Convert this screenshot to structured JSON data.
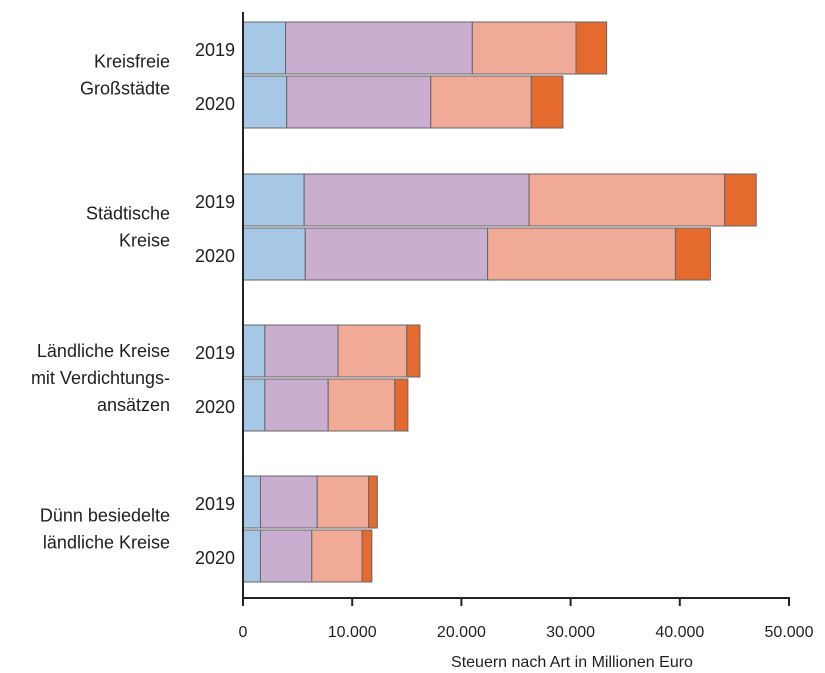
{
  "chart_data": {
    "type": "bar",
    "orientation": "horizontal",
    "stacked": true,
    "xlabel": "Steuern nach Art in Millionen Euro",
    "xlim": [
      0,
      50000
    ],
    "x_ticks": [
      "0",
      "10.000",
      "20.000",
      "30.000",
      "40.000",
      "50.000"
    ],
    "grid": false,
    "legend": null,
    "groups": [
      {
        "label_lines": [
          "Kreisfreie",
          "Großstädte"
        ],
        "bars": [
          {
            "year": "2019",
            "values": [
              3900,
              17100,
              9500,
              2800
            ]
          },
          {
            "year": "2020",
            "values": [
              4000,
              13200,
              9200,
              2900
            ]
          }
        ]
      },
      {
        "label_lines": [
          "Städtische",
          "Kreise"
        ],
        "bars": [
          {
            "year": "2019",
            "values": [
              5600,
              20600,
              17900,
              2900
            ]
          },
          {
            "year": "2020",
            "values": [
              5700,
              16700,
              17200,
              3200
            ]
          }
        ]
      },
      {
        "label_lines": [
          "Ländliche Kreise",
          "mit Verdichtungs-",
          "ansätzen"
        ],
        "bars": [
          {
            "year": "2019",
            "values": [
              2000,
              6700,
              6300,
              1200
            ]
          },
          {
            "year": "2020",
            "values": [
              2000,
              5800,
              6100,
              1200
            ]
          }
        ]
      },
      {
        "label_lines": [
          "Dünn besiedelte",
          "ländliche Kreise"
        ],
        "bars": [
          {
            "year": "2019",
            "values": [
              1600,
              5200,
              4700,
              800
            ]
          },
          {
            "year": "2020",
            "values": [
              1600,
              4700,
              4600,
              900
            ]
          }
        ]
      }
    ],
    "series_colors": [
      "#a6c8e6",
      "#caaed0",
      "#f1aa96",
      "#e46a2e"
    ]
  }
}
